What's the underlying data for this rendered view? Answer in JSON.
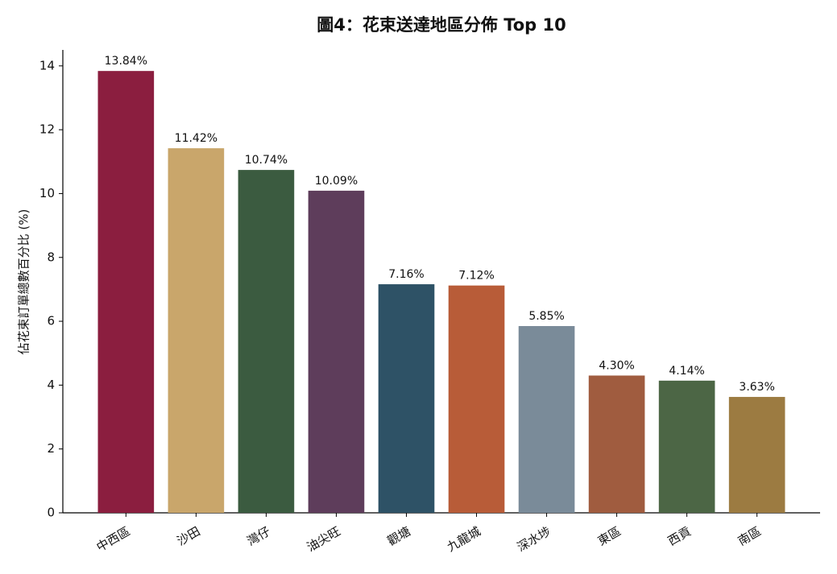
{
  "chart_data": {
    "type": "bar",
    "title": "圖4：花束送達地區分佈 Top 10",
    "y_label": "佔花束訂單總數百分比 (%)",
    "categories": [
      "中西區",
      "沙田",
      "灣仔",
      "油尖旺",
      "觀塘",
      "九龍城",
      "深水埗",
      "東區",
      "西貢",
      "南區"
    ],
    "values": [
      13.84,
      11.42,
      10.74,
      10.09,
      7.16,
      7.12,
      5.85,
      4.3,
      4.14,
      3.63
    ],
    "value_labels": [
      "13.84%",
      "11.42%",
      "10.74%",
      "10.09%",
      "7.16%",
      "7.12%",
      "5.85%",
      "4.30%",
      "4.14%",
      "3.63%"
    ],
    "colors": [
      "#8b1e3f",
      "#c9a66b",
      "#3b5b40",
      "#5e3d5b",
      "#2e5266",
      "#b85c38",
      "#7a8b99",
      "#a05c3f",
      "#4c6645",
      "#9c7b41"
    ],
    "ylim": [
      0,
      14.5
    ],
    "yticks": [
      0,
      2,
      4,
      6,
      8,
      10,
      12,
      14
    ],
    "grid": false
  }
}
